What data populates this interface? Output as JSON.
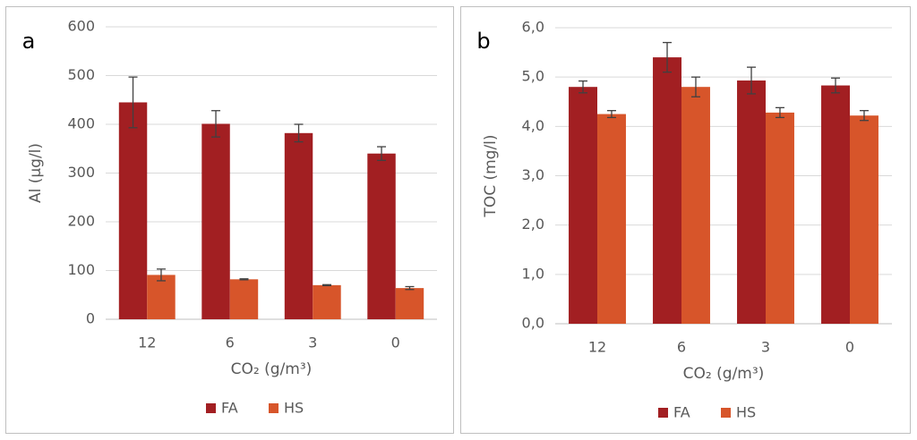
{
  "chart_data": [
    {
      "type": "bar",
      "panel_label": "a",
      "y_label": "Al (µg/l)",
      "x_label": "CO₂ (g/m³)",
      "categories": [
        "12",
        "6",
        "3",
        "0"
      ],
      "series": [
        {
          "name": "FA",
          "color": "#a21f22",
          "values": [
            445,
            401,
            382,
            340
          ],
          "errors": [
            52,
            27,
            18,
            14
          ]
        },
        {
          "name": "HS",
          "color": "#d7552a",
          "values": [
            91,
            82,
            70,
            64
          ],
          "errors": [
            12,
            1,
            1,
            3
          ]
        }
      ],
      "ylim": [
        0,
        600
      ],
      "yticks": [
        0,
        100,
        200,
        300,
        400,
        500,
        600
      ],
      "grid": true
    },
    {
      "type": "bar",
      "panel_label": "b",
      "y_label": "TOC (mg/l)",
      "x_label": "CO₂ (g/m³)",
      "categories": [
        "12",
        "6",
        "3",
        "0"
      ],
      "series": [
        {
          "name": "FA",
          "color": "#a21f22",
          "values": [
            4.8,
            5.4,
            4.93,
            4.83
          ],
          "errors": [
            0.12,
            0.3,
            0.27,
            0.15
          ]
        },
        {
          "name": "HS",
          "color": "#d7552a",
          "values": [
            4.25,
            4.8,
            4.28,
            4.22
          ],
          "errors": [
            0.07,
            0.2,
            0.1,
            0.1
          ]
        }
      ],
      "ylim": [
        0,
        6
      ],
      "yticks": [
        {
          "value": 0,
          "label": "0,0"
        },
        {
          "value": 1,
          "label": "1,0"
        },
        {
          "value": 2,
          "label": "2,0"
        },
        {
          "value": 3,
          "label": "3,0"
        },
        {
          "value": 4,
          "label": "4,0"
        },
        {
          "value": 5,
          "label": "5,0"
        },
        {
          "value": 6,
          "label": "6,0"
        }
      ],
      "grid": true
    }
  ]
}
